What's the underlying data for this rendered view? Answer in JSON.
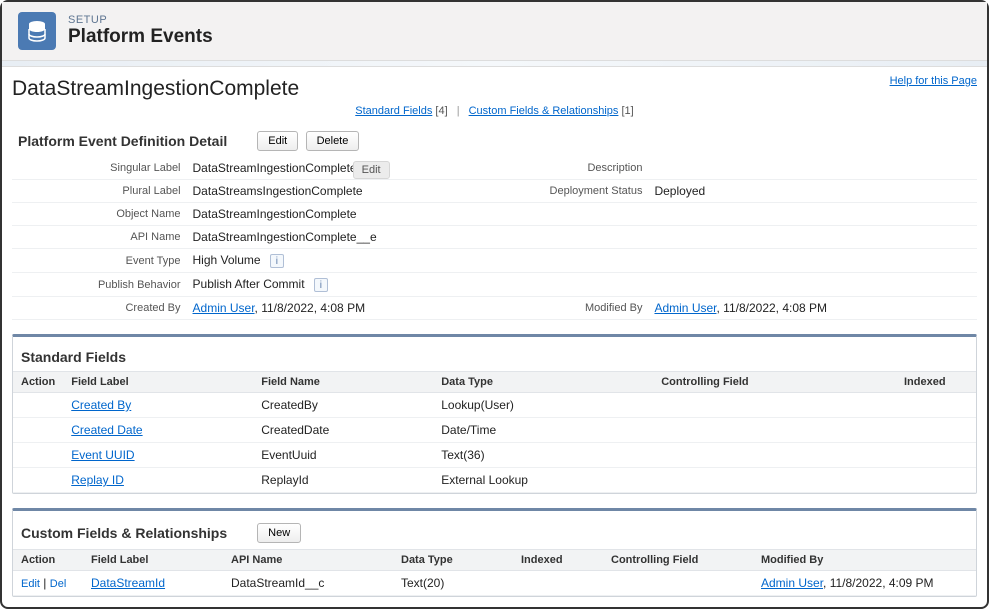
{
  "header": {
    "eyebrow": "SETUP",
    "title": "Platform Events"
  },
  "page": {
    "title": "DataStreamIngestionComplete",
    "help_link": "Help for this Page"
  },
  "anchors": {
    "standard_label": "Standard Fields",
    "standard_count": "[4]",
    "custom_label": "Custom Fields & Relationships",
    "custom_count": "[1]"
  },
  "detail": {
    "section_title": "Platform Event Definition Detail",
    "edit_btn": "Edit",
    "delete_btn": "Delete",
    "hover_edit": "Edit",
    "labels": {
      "singular": "Singular Label",
      "plural": "Plural Label",
      "object_name": "Object Name",
      "api_name": "API Name",
      "event_type": "Event Type",
      "publish_behavior": "Publish Behavior",
      "created_by": "Created By",
      "description": "Description",
      "deployment_status": "Deployment Status",
      "modified_by": "Modified By"
    },
    "values": {
      "singular": "DataStreamIngestionComplete",
      "plural": "DataStreamsIngestionComplete",
      "object_name": "DataStreamIngestionComplete",
      "api_name": "DataStreamIngestionComplete__e",
      "event_type": "High Volume",
      "publish_behavior": "Publish After Commit",
      "created_by_user": "Admin User",
      "created_by_ts": ", 11/8/2022, 4:08 PM",
      "description": "",
      "deployment_status": "Deployed",
      "modified_by_user": "Admin User",
      "modified_by_ts": ", 11/8/2022, 4:08 PM"
    }
  },
  "standard": {
    "title": "Standard Fields",
    "cols": {
      "action": "Action",
      "field_label": "Field Label",
      "field_name": "Field Name",
      "data_type": "Data Type",
      "controlling": "Controlling Field",
      "indexed": "Indexed"
    },
    "rows": [
      {
        "label": "Created By",
        "name": "CreatedBy",
        "type": "Lookup(User)"
      },
      {
        "label": "Created Date",
        "name": "CreatedDate",
        "type": "Date/Time"
      },
      {
        "label": "Event UUID",
        "name": "EventUuid",
        "type": "Text(36)"
      },
      {
        "label": "Replay ID",
        "name": "ReplayId",
        "type": "External Lookup"
      }
    ]
  },
  "custom": {
    "title": "Custom Fields & Relationships",
    "new_btn": "New",
    "cols": {
      "action": "Action",
      "field_label": "Field Label",
      "api_name": "API Name",
      "data_type": "Data Type",
      "indexed": "Indexed",
      "controlling": "Controlling Field",
      "modified_by": "Modified By"
    },
    "rows": [
      {
        "edit": "Edit",
        "del": "Del",
        "label": "DataStreamId",
        "api": "DataStreamId__c",
        "type": "Text(20)",
        "indexed": "",
        "controlling": "",
        "mod_user": "Admin User",
        "mod_ts": ", 11/8/2022, 4:09 PM"
      }
    ],
    "action_sep": " | "
  }
}
